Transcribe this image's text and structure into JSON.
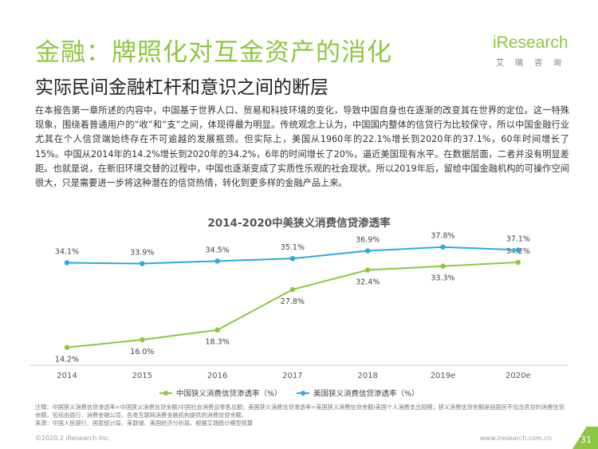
{
  "header": {
    "title": "金融：牌照化对互金资产的消化",
    "subtitle": "实际民间金融杠杆和意识之间的断层",
    "logo_text": "iResearch",
    "logo_sub": "艾瑞咨询"
  },
  "body_text": "在本报告第一章所述的内容中，中国基于世界人口、贸易和科技环境的变化，导致中国自身也在逐渐的改变其在世界的定位。这一特殊现象，围绕着普通用户的“收”和“支”之间，体现得最为明显。传统观念上认为，中国国内整体的信贷行为比较保守，所以中国金融行业尤其在个人信贷端始终存在不可逾越的发展瓶颈。但实际上，美国从1960年的22.1%增长到2020年的37.1%，60年时间增长了15%。中国从2014年的14.2%增长到2020年的34.2%，6年的时间增长了20%，逼近美国现有水平。在数据层面，二者并没有明显差距。也就是说，在新旧环境交替的过程中，中国也逐渐变成了实质性乐观的社会现状。所以2019年后，留给中国金融机构的可操作空间很大，只是需要进一步将这种潜在的信贷热情，转化到更多样的金融产品上来。",
  "chart_data": {
    "type": "line",
    "title": "2014-2020中美狭义消费信贷渗透率",
    "xlabel": "",
    "ylabel": "",
    "categories": [
      "2014",
      "2015",
      "2016",
      "2017",
      "2018",
      "2019e",
      "2020e"
    ],
    "ylim": [
      10,
      40
    ],
    "grid": false,
    "legend_position": "bottom",
    "series": [
      {
        "name": "中国狭义消费信贷渗透率（%）",
        "color": "#8dc63f",
        "values": [
          14.2,
          16.0,
          18.3,
          27.8,
          32.4,
          33.3,
          34.2
        ],
        "labels": [
          "14.2%",
          "16.0%",
          "18.3%",
          "27.8%",
          "32.4%",
          "33.3%",
          "34.2%"
        ]
      },
      {
        "name": "美国狭义消费信贷渗透率（%）",
        "color": "#29a9e1",
        "values": [
          34.1,
          33.9,
          34.5,
          35.1,
          36.9,
          37.8,
          37.1
        ],
        "labels": [
          "34.1%",
          "33.9%",
          "34.5%",
          "35.1%",
          "36.9%",
          "37.8%",
          "37.1%"
        ]
      }
    ]
  },
  "notes": {
    "line1": "注释：中国狭义消费信贷渗透率=中国狭义消费信贷余额/中国社会消费品零售总额；美国狭义消费信贷渗透率=美国狭义消费信贷余额/美国个人消费支出规模；狭义消费信贷余额是指居民不包含房贷的消费信贷余额，包括由银行、消费金融公司、各类互联网消费金融机构提供的消费信贷余额。",
    "line2": "来源：中国人民银行、国家统计局、美联储、美国经济分析局、根据艾瑞统计模型核算"
  },
  "footer": {
    "copyright": "©2020.2 iResearch Inc.",
    "website": "www.iresearch.com.cn",
    "page_number": "31"
  }
}
